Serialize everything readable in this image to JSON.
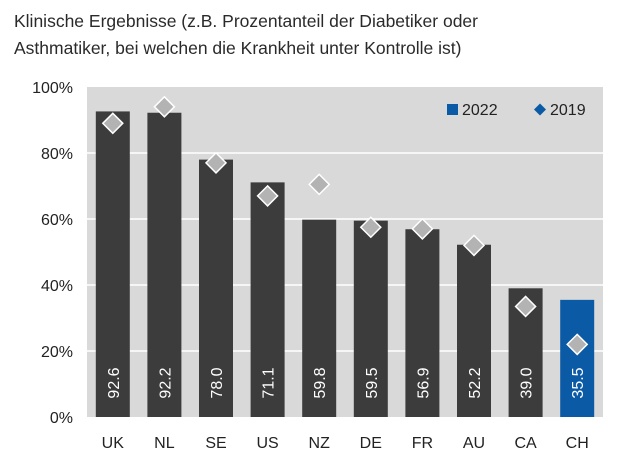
{
  "title_lines": [
    "Klinische Ergebnisse (z.B. Prozentanteil der Diabetiker oder",
    "Asthmatiker, bei welchen die Krankheit unter Kontrolle ist)"
  ],
  "colors": {
    "plot_bg": "#d9d9d9",
    "bar": "#3c3c3c",
    "bar_highlight": "#0b5aa6",
    "marker": "#b3b3b3",
    "marker_stroke": "#ffffff",
    "grid": "#ffffff"
  },
  "chart_data": {
    "type": "bar",
    "title": "Klinische Ergebnisse (z.B. Prozentanteil der Diabetiker oder Asthmatiker, bei welchen die Krankheit unter Kontrolle ist)",
    "categories": [
      "UK",
      "NL",
      "SE",
      "US",
      "NZ",
      "DE",
      "FR",
      "AU",
      "CA",
      "CH"
    ],
    "series": [
      {
        "name": "2022",
        "kind": "bar",
        "values": [
          92.6,
          92.2,
          78.0,
          71.1,
          59.8,
          59.5,
          56.9,
          52.2,
          39.0,
          35.5
        ],
        "labels": [
          "92.6",
          "92.2",
          "78.0",
          "71.1",
          "59.8",
          "59.5",
          "56.9",
          "52.2",
          "39.0",
          "35.5"
        ]
      },
      {
        "name": "2019",
        "kind": "marker",
        "values": [
          89,
          94,
          77,
          67,
          70.5,
          57.5,
          57,
          52,
          33.5,
          22
        ]
      }
    ],
    "highlight_category": "CH",
    "ylim": [
      0,
      100
    ],
    "yticks": [
      0,
      20,
      40,
      60,
      80,
      100
    ],
    "ytick_labels": [
      "0%",
      "20%",
      "40%",
      "60%",
      "80%",
      "100%"
    ],
    "xlabel": "",
    "ylabel": "",
    "legend": {
      "position": "top-right",
      "entries": [
        "2022",
        "2019"
      ]
    }
  }
}
